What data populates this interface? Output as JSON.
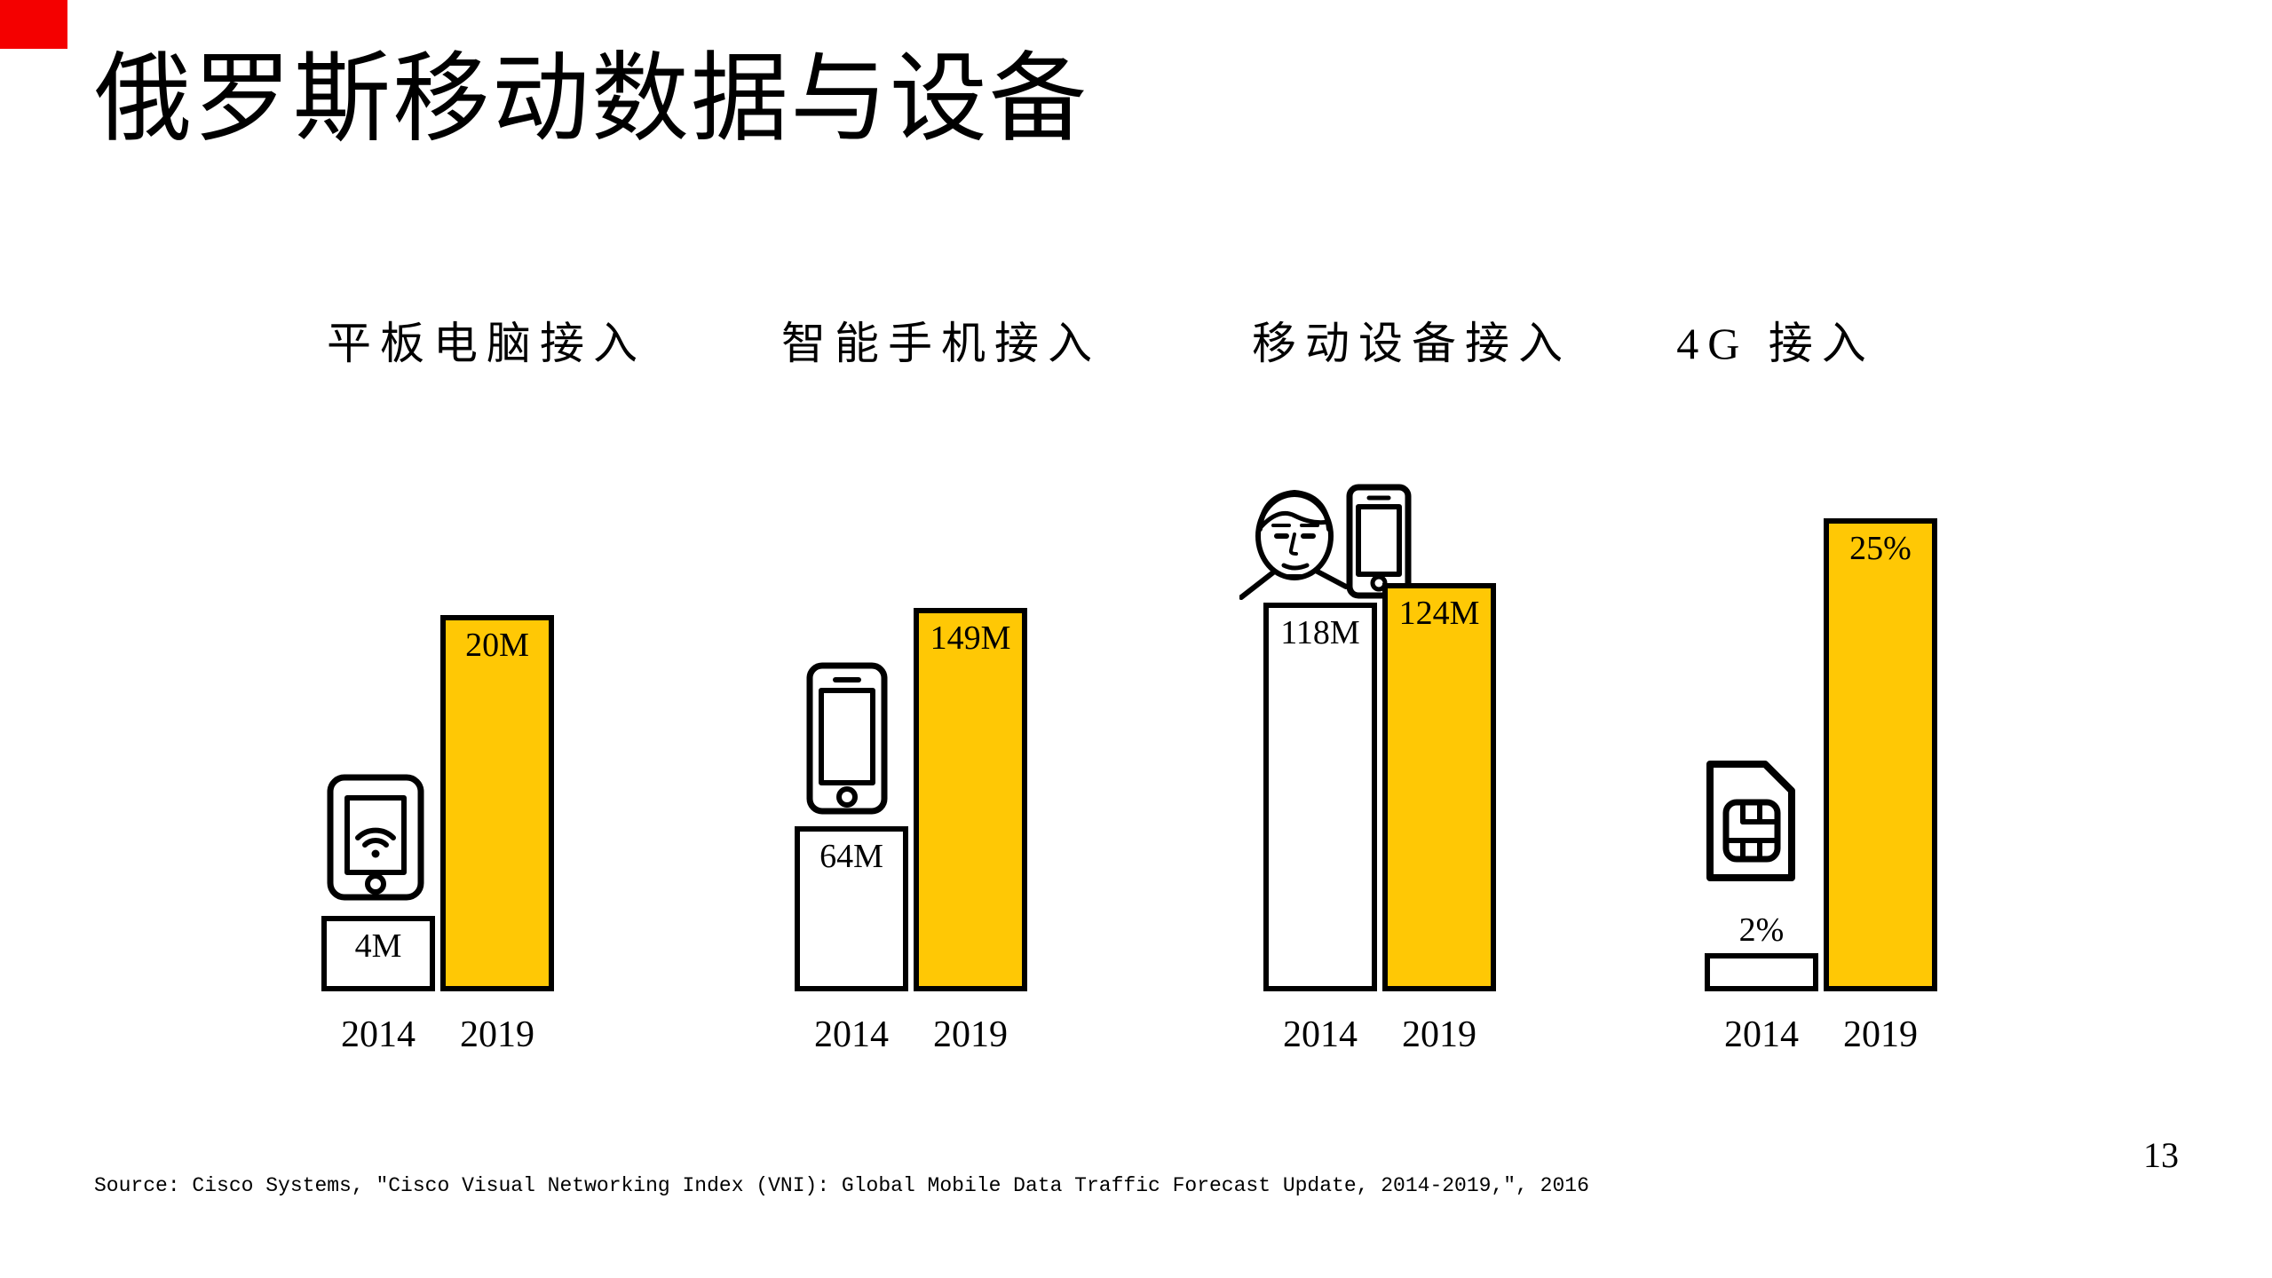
{
  "slide": {
    "title": "俄罗斯移动数据与设备",
    "page_number": "13",
    "source": "Source: Cisco Systems, ″Cisco Visual Networking Index (VNI): Global Mobile Data Traffic Forecast Update, 2014-2019,″, 2016"
  },
  "colors": {
    "accent_yellow": "#FFC805",
    "bar_white": "#FFFFFF",
    "bar_border": "#000000",
    "corner_mark_red": "#F40000",
    "background": "#FFFFFF",
    "text": "#000000"
  },
  "chart_data": [
    {
      "type": "bar",
      "title": "平板电脑接入",
      "icon": "tablet-wifi-icon",
      "categories": [
        "2014",
        "2019"
      ],
      "values": [
        4,
        20
      ],
      "unit": "M",
      "labels": [
        "4M",
        "20M"
      ],
      "series_colors": [
        "#FFFFFF",
        "#FFC805"
      ],
      "legend": "none",
      "grid": false
    },
    {
      "type": "bar",
      "title": "智能手机接入",
      "icon": "smartphone-icon",
      "categories": [
        "2014",
        "2019"
      ],
      "values": [
        64,
        149
      ],
      "unit": "M",
      "labels": [
        "64M",
        "149M"
      ],
      "series_colors": [
        "#FFFFFF",
        "#FFC805"
      ],
      "legend": "none",
      "grid": false
    },
    {
      "type": "bar",
      "title": "移动设备接入",
      "icon": "person-with-phone-icon",
      "categories": [
        "2014",
        "2019"
      ],
      "values": [
        118,
        124
      ],
      "unit": "M",
      "labels": [
        "118M",
        "124M"
      ],
      "series_colors": [
        "#FFFFFF",
        "#FFC805"
      ],
      "legend": "none",
      "grid": false
    },
    {
      "type": "bar",
      "title": "4G 接入",
      "icon": "sim-card-icon",
      "categories": [
        "2014",
        "2019"
      ],
      "values": [
        2,
        25
      ],
      "unit": "%",
      "labels": [
        "2%",
        "25%"
      ],
      "series_colors": [
        "#FFFFFF",
        "#FFC805"
      ],
      "legend": "none",
      "grid": false
    }
  ]
}
